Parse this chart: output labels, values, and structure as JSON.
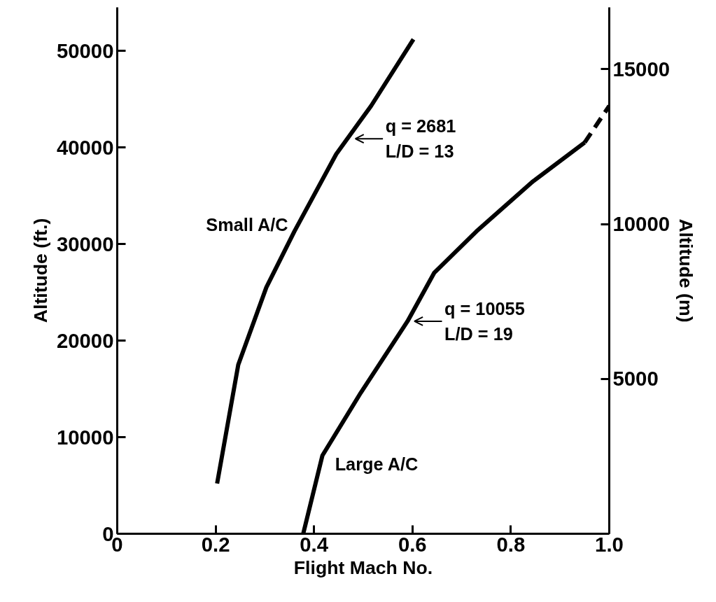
{
  "chart_data": {
    "type": "line",
    "xlabel": "Flight Mach No.",
    "ylabel": "Altitude (ft.)",
    "y2label": "Altitude (m)",
    "xlim": [
      0,
      1.0
    ],
    "xticks": [
      0,
      {
        "value": 0.2,
        "label": "0.2"
      },
      {
        "value": 0.4,
        "label": "0.4"
      },
      {
        "value": 0.6,
        "label": "0.6"
      },
      {
        "value": 0.8,
        "label": "0.8"
      },
      {
        "value": 1.0,
        "label": "1.0"
      }
    ],
    "ylim": [
      0,
      54500
    ],
    "yticks": [
      0,
      10000,
      20000,
      30000,
      40000,
      50000
    ],
    "y2lim": [
      0,
      17000
    ],
    "y2ticks": [
      5000,
      10000,
      15000
    ],
    "grid": false,
    "marker": "none",
    "series": [
      {
        "name": "Small A/C",
        "color": "#000000",
        "line_style": "solid",
        "x": [
          0.203,
          0.246,
          0.303,
          0.36,
          0.445,
          0.516,
          0.602
        ],
        "values": [
          5200,
          17500,
          25500,
          31300,
          39300,
          44300,
          51200
        ]
      },
      {
        "name": "Large A/C",
        "color": "#000000",
        "line_style": "solid",
        "x": [
          0.378,
          0.417,
          0.495,
          0.59,
          0.644,
          0.73,
          0.843,
          0.95
        ],
        "values": [
          0,
          8100,
          14600,
          22000,
          27000,
          31300,
          36400,
          40500
        ]
      },
      {
        "color": "#000000",
        "line_style": "dashed",
        "x": [
          0.95,
          1.0
        ],
        "values": [
          40500,
          44300
        ]
      }
    ],
    "annotations": [
      {
        "text": "q = 2681\nL/D = 13",
        "x": 0.47,
        "y": 40900
      },
      {
        "text": "q = 10055\nL/D = 19",
        "x": 0.59,
        "y": 22000
      }
    ]
  }
}
